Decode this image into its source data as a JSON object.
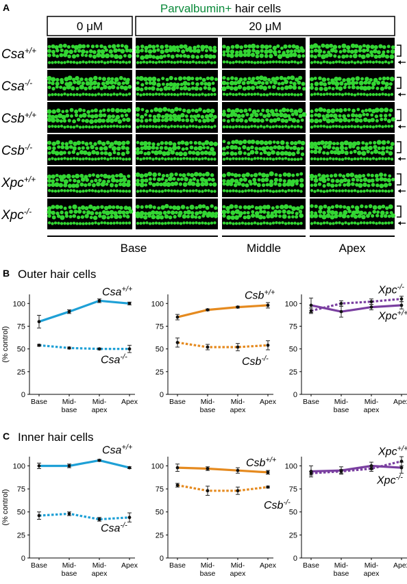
{
  "panel_a": {
    "letter": "A",
    "title_green": "Parvalbumin+",
    "title_black": " hair cells",
    "title_green_color": "#0a8a3a",
    "conditions": [
      "0 μM",
      "20 μM"
    ],
    "regions": [
      "Base",
      "Middle",
      "Apex"
    ],
    "rows": [
      {
        "gene": "Csa",
        "sup": "+/+"
      },
      {
        "gene": "Csa",
        "sup": "-/-"
      },
      {
        "gene": "Csb",
        "sup": "+/+"
      },
      {
        "gene": "Csb",
        "sup": "-/-"
      },
      {
        "gene": "Xpc",
        "sup": "+/+"
      },
      {
        "gene": "Xpc",
        "sup": "-/-"
      }
    ],
    "image_color": "#33d633",
    "arrow_color": "#000000"
  },
  "panel_b": {
    "letter": "B",
    "title": "Outer hair cells"
  },
  "panel_c": {
    "letter": "C",
    "title": "Inner hair cells"
  },
  "chart_data": [
    {
      "type": "line",
      "panel": "B",
      "title": "Outer hair cells",
      "categories": [
        "Base",
        "Mid-base",
        "Mid-apex",
        "Apex"
      ],
      "category_labels": [
        [
          "Base"
        ],
        [
          "Mid-",
          "base"
        ],
        [
          "Mid-",
          "apex"
        ],
        [
          "Apex"
        ]
      ],
      "ylabel": "(% control)",
      "ylim": [
        0,
        100
      ],
      "yticks": [
        0,
        25,
        50,
        75,
        100
      ],
      "series": [
        {
          "name": "Csa",
          "sup": "+/+",
          "color": "#1ea0d6",
          "dashed": false,
          "values": [
            80,
            91,
            103,
            100
          ],
          "errors": [
            7,
            2,
            2,
            1.5
          ]
        },
        {
          "name": "Csa",
          "sup": "-/-",
          "color": "#1ea0d6",
          "dashed": true,
          "values": [
            54,
            51,
            50,
            50
          ],
          "errors": [
            1,
            1,
            1,
            4
          ]
        }
      ]
    },
    {
      "type": "line",
      "panel": "B",
      "title": "Outer hair cells",
      "categories": [
        "Base",
        "Mid-base",
        "Mid-apex",
        "Apex"
      ],
      "category_labels": [
        [
          "Base"
        ],
        [
          "Mid-",
          "base"
        ],
        [
          "Mid-",
          "apex"
        ],
        [
          "Apex"
        ]
      ],
      "ylim": [
        0,
        100
      ],
      "yticks": [
        0,
        25,
        50,
        75,
        100
      ],
      "series": [
        {
          "name": "Csb",
          "sup": "+/+",
          "color": "#e58a1f",
          "dashed": false,
          "values": [
            85,
            93,
            96,
            98
          ],
          "errors": [
            3,
            1,
            1,
            3
          ]
        },
        {
          "name": "Csb",
          "sup": "-/-",
          "color": "#e58a1f",
          "dashed": true,
          "values": [
            57,
            52,
            52,
            54
          ],
          "errors": [
            5,
            3,
            4,
            5
          ]
        }
      ]
    },
    {
      "type": "line",
      "panel": "B",
      "title": "Outer hair cells",
      "categories": [
        "Base",
        "Mid-base",
        "Mid-apex",
        "Apex"
      ],
      "category_labels": [
        [
          "Base"
        ],
        [
          "Mid-",
          "base"
        ],
        [
          "Mid-",
          "apex"
        ],
        [
          "Apex"
        ]
      ],
      "ylim": [
        0,
        100
      ],
      "yticks": [
        0,
        25,
        50,
        75,
        100
      ],
      "series": [
        {
          "name": "Xpc",
          "sup": "+/+",
          "color": "#7a3fa0",
          "dashed": false,
          "values": [
            98,
            91,
            96,
            98
          ],
          "errors": [
            8,
            6,
            3,
            4
          ]
        },
        {
          "name": "Xpc",
          "sup": "-/-",
          "color": "#7a3fa0",
          "dashed": true,
          "values": [
            92,
            100,
            102,
            105
          ],
          "errors": [
            3,
            3,
            3,
            3
          ]
        }
      ]
    },
    {
      "type": "line",
      "panel": "C",
      "title": "Inner hair cells",
      "categories": [
        "Base",
        "Mid-base",
        "Mid-apex",
        "Apex"
      ],
      "category_labels": [
        [
          "Base"
        ],
        [
          "Mid-",
          "base"
        ],
        [
          "Mid-",
          "apex"
        ],
        [
          "Apex"
        ]
      ],
      "ylabel": "(% control)",
      "ylim": [
        0,
        100
      ],
      "yticks": [
        0,
        25,
        50,
        75,
        100
      ],
      "series": [
        {
          "name": "Csa",
          "sup": "+/+",
          "color": "#1ea0d6",
          "dashed": false,
          "values": [
            100,
            100,
            106,
            98
          ],
          "errors": [
            3,
            2,
            1,
            1
          ]
        },
        {
          "name": "Csa",
          "sup": "-/-",
          "color": "#1ea0d6",
          "dashed": true,
          "values": [
            46,
            48,
            42,
            44
          ],
          "errors": [
            4,
            2,
            2,
            5
          ]
        }
      ]
    },
    {
      "type": "line",
      "panel": "C",
      "title": "Inner hair cells",
      "categories": [
        "Base",
        "Mid-base",
        "Mid-apex",
        "Apex"
      ],
      "category_labels": [
        [
          "Base"
        ],
        [
          "Mid-",
          "base"
        ],
        [
          "Mid-",
          "apex"
        ],
        [
          "Apex"
        ]
      ],
      "ylim": [
        0,
        100
      ],
      "yticks": [
        0,
        25,
        50,
        75,
        100
      ],
      "series": [
        {
          "name": "Csb",
          "sup": "+/+",
          "color": "#e58a1f",
          "dashed": false,
          "values": [
            98,
            97,
            95,
            93
          ],
          "errors": [
            4,
            2,
            3,
            2
          ]
        },
        {
          "name": "Csb",
          "sup": "-/-",
          "color": "#e58a1f",
          "dashed": true,
          "values": [
            79,
            73,
            73,
            77
          ],
          "errors": [
            2,
            5,
            4,
            1
          ]
        }
      ]
    },
    {
      "type": "line",
      "panel": "C",
      "title": "Inner hair cells",
      "categories": [
        "Base",
        "Mid-base",
        "Mid-apex",
        "Apex"
      ],
      "category_labels": [
        [
          "Base"
        ],
        [
          "Mid-",
          "base"
        ],
        [
          "Mid-",
          "apex"
        ],
        [
          "Apex"
        ]
      ],
      "ylim": [
        0,
        100
      ],
      "yticks": [
        0,
        25,
        50,
        75,
        100
      ],
      "series": [
        {
          "name": "Xpc",
          "sup": "+/+",
          "color": "#7a3fa0",
          "dashed": false,
          "values": [
            94,
            95,
            100,
            98
          ],
          "errors": [
            6,
            4,
            4,
            6
          ]
        },
        {
          "name": "Xpc",
          "sup": "-/-",
          "color": "#7a3fa0",
          "dashed": true,
          "values": [
            92,
            94,
            97,
            105
          ],
          "errors": [
            2,
            2,
            3,
            5
          ]
        }
      ]
    }
  ]
}
